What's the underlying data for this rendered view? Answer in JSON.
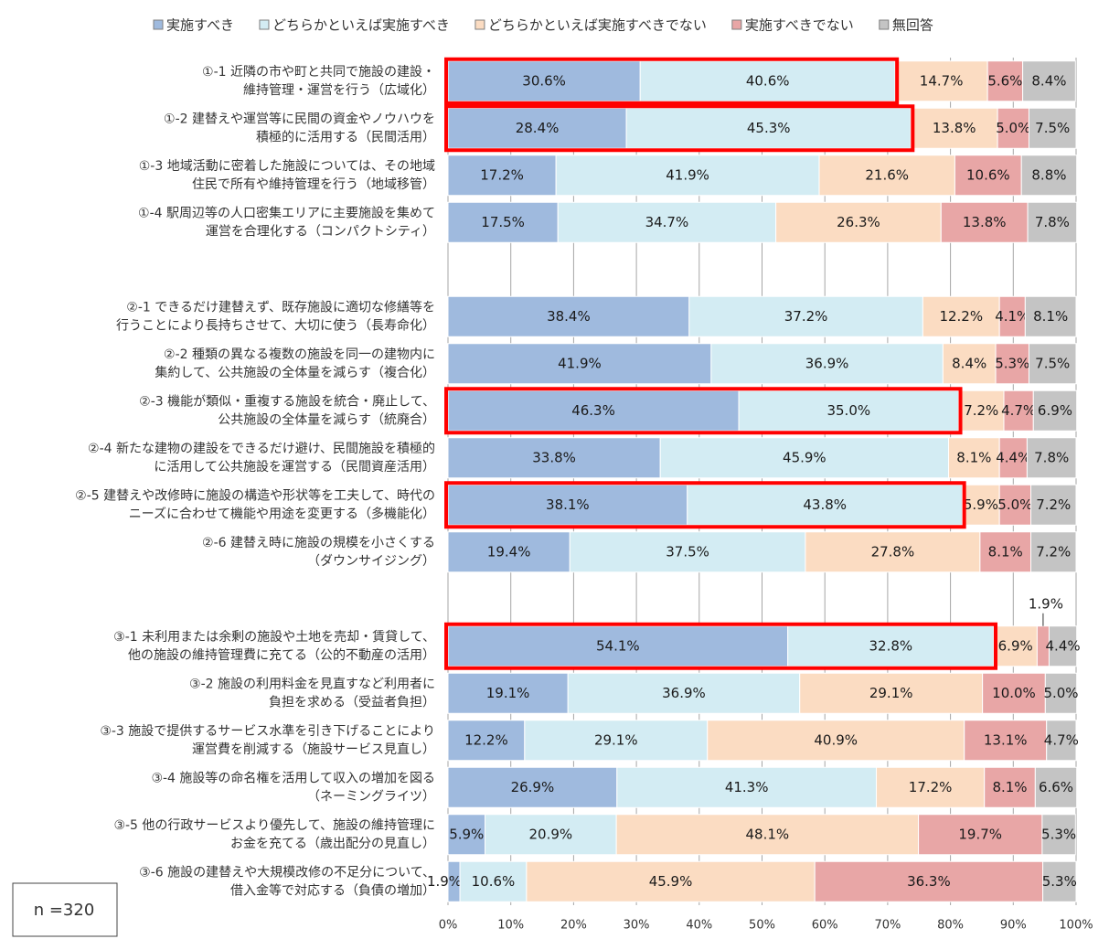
{
  "chart_data": {
    "type": "stacked-bar-horizontal",
    "categories": [
      [
        "①-1 近隣の市や町と共同で施設の建設・",
        "維持管理・運営を行う（広域化）"
      ],
      [
        "①-2 建替えや運営等に民間の資金やノウハウを",
        "積極的に活用する（民間活用）"
      ],
      [
        "①-3 地域活動に密着した施設については、その地域",
        "住民で所有や維持管理を行う（地域移管）"
      ],
      [
        "①-4 駅周辺等の人口密集エリアに主要施設を集めて",
        "運営を合理化する（コンパクトシティ）"
      ],
      null,
      [
        "②-1 できるだけ建替えず、既存施設に適切な修繕等を",
        "行うことにより長持ちさせて、大切に使う（長寿命化）"
      ],
      [
        "②-2 種類の異なる複数の施設を同一の建物内に",
        "集約して、公共施設の全体量を減らす（複合化）"
      ],
      [
        "②-3 機能が類似・重複する施設を統合・廃止して、",
        "公共施設の全体量を減らす（統廃合）"
      ],
      [
        "②-4 新たな建物の建設をできるだけ避け、民間施設を積極的",
        "に活用して公共施設を運営する（民間資産活用）"
      ],
      [
        "②-5 建替えや改修時に施設の構造や形状等を工夫して、時代の",
        "ニーズに合わせて機能や用途を変更する（多機能化）"
      ],
      [
        "②-6 建替え時に施設の規模を小さくする",
        "（ダウンサイジング）"
      ],
      null,
      [
        "③-1 未利用または余剰の施設や土地を売却・賃貸して、",
        "他の施設の維持管理費に充てる（公的不動産の活用）"
      ],
      [
        "③-2 施設の利用料金を見直すなど利用者に",
        "負担を求める（受益者負担）"
      ],
      [
        "③-3 施設で提供するサービス水準を引き下げることにより",
        "運営費を削減する（施設サービス見直し）"
      ],
      [
        "③-4 施設等の命名権を活用して収入の増加を図る",
        "（ネーミングライツ）"
      ],
      [
        "③-5 他の行政サービスより優先して、施設の維持管理に",
        "お金を充てる（歳出配分の見直し）"
      ],
      [
        "③-6 施設の建替えや大規模改修の不足分について、",
        "借入金等で対応する（負債の増加）"
      ]
    ],
    "series": [
      {
        "name": "実施すべき",
        "color": "#9fbade",
        "values": [
          30.6,
          28.4,
          17.2,
          17.5,
          null,
          38.4,
          41.9,
          46.3,
          33.8,
          38.1,
          19.4,
          null,
          54.1,
          19.1,
          12.2,
          26.9,
          5.9,
          1.9
        ],
        "value_labels": [
          "30.6%",
          "28.4%",
          "17.2%",
          "17.5%",
          null,
          "38.4%",
          "41.9%",
          "46.3%",
          "33.8%",
          "38.1%",
          "19.4%",
          null,
          "54.1%",
          "19.1%",
          "12.2%",
          "26.9%",
          "5.9%",
          "1.9%"
        ]
      },
      {
        "name": "どちらかといえば実施すべき",
        "color": "#d3ecf3",
        "values": [
          40.6,
          45.3,
          41.9,
          34.7,
          null,
          37.2,
          36.9,
          35.0,
          45.9,
          43.8,
          37.5,
          null,
          32.8,
          36.9,
          29.1,
          41.3,
          20.9,
          10.6
        ],
        "value_labels": [
          "40.6%",
          "45.3%",
          "41.9%",
          "34.7%",
          null,
          "37.2%",
          "36.9%",
          "35.0%",
          "45.9%",
          "43.8%",
          "37.5%",
          null,
          "32.8%",
          "36.9%",
          "29.1%",
          "41.3%",
          "20.9%",
          "10.6%"
        ]
      },
      {
        "name": "どちらかといえば実施すべきでない",
        "color": "#fbdcc2",
        "values": [
          14.7,
          13.8,
          21.6,
          26.3,
          null,
          12.2,
          8.4,
          7.2,
          8.1,
          5.9,
          27.8,
          null,
          6.9,
          29.1,
          40.9,
          17.2,
          48.1,
          45.9
        ],
        "value_labels": [
          "14.7%",
          "13.8%",
          "21.6%",
          "26.3%",
          null,
          "12.2%",
          "8.4%",
          "7.2%",
          "8.1%",
          "5.9%",
          "27.8%",
          null,
          "6.9%",
          "29.1%",
          "40.9%",
          "17.2%",
          "48.1%",
          "45.9%"
        ]
      },
      {
        "name": "実施すべきでない",
        "color": "#e8a6a6",
        "values": [
          5.6,
          5.0,
          10.6,
          13.8,
          null,
          4.1,
          5.3,
          4.7,
          4.4,
          5.0,
          8.1,
          null,
          1.9,
          10.0,
          13.1,
          8.1,
          19.7,
          36.3
        ],
        "value_labels": [
          "5.6%",
          "5.0%",
          "10.6%",
          "13.8%",
          null,
          "4.1%",
          "5.3%",
          "4.7%",
          "4.4%",
          "5.0%",
          "8.1%",
          null,
          "1.9%",
          "10.0%",
          "13.1%",
          "8.1%",
          "19.7%",
          "36.3%"
        ]
      },
      {
        "name": "無回答",
        "color": "#c4c4c4",
        "values": [
          8.4,
          7.5,
          8.8,
          7.8,
          null,
          8.1,
          7.5,
          6.9,
          7.8,
          7.2,
          7.2,
          null,
          4.4,
          5.0,
          4.7,
          6.6,
          5.3,
          5.3
        ],
        "value_labels": [
          "8.4%",
          "7.5%",
          "8.8%",
          "7.8%",
          null,
          "8.1%",
          "7.5%",
          "6.9%",
          "7.8%",
          "7.2%",
          "7.2%",
          null,
          "4.4%",
          "5.0%",
          "4.7%",
          "6.6%",
          "5.3%",
          "5.3%"
        ]
      }
    ],
    "xlim": [
      0,
      100
    ],
    "xticks": [
      {
        "value": 0,
        "label": "0%"
      },
      {
        "value": 10,
        "label": "10%"
      },
      {
        "value": 20,
        "label": "20%"
      },
      {
        "value": 30,
        "label": "30%"
      },
      {
        "value": 40,
        "label": "40%"
      },
      {
        "value": 50,
        "label": "50%"
      },
      {
        "value": 60,
        "label": "60%"
      },
      {
        "value": 70,
        "label": "70%"
      },
      {
        "value": 80,
        "label": "80%"
      },
      {
        "value": 90,
        "label": "90%"
      },
      {
        "value": 100,
        "label": "100%"
      }
    ],
    "grid": true,
    "legend": "top",
    "highlight": [
      0,
      1,
      7,
      9,
      12
    ],
    "highlight_color": "#ff0000",
    "annotation": "n =320"
  }
}
